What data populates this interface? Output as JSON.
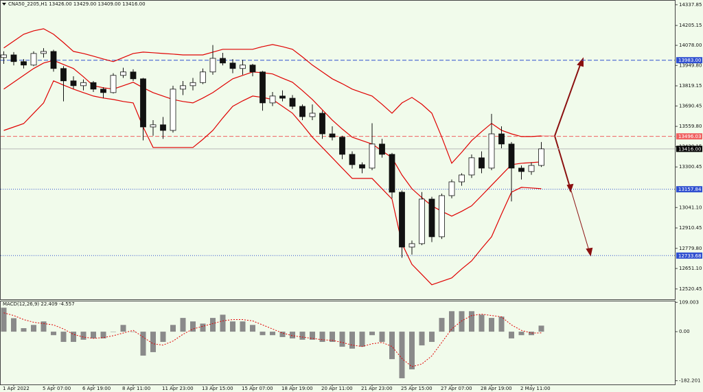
{
  "chart_data": {
    "type": "candlestick",
    "title": "CNA50_2205,H1 13426.00 13429.00 13409.00 13416.00",
    "categories": [
      null,
      "1 Apr 2022",
      null,
      null,
      null,
      "5 Apr 07:00",
      null,
      null,
      null,
      "6 Apr 19:00",
      null,
      null,
      null,
      "8 Apr 11:00",
      null,
      null,
      null,
      "11 Apr 23:00",
      null,
      null,
      null,
      "13 Apr 15:00",
      null,
      null,
      null,
      "15 Apr 07:00",
      null,
      null,
      null,
      "18 Apr 19:00",
      null,
      null,
      null,
      "20 Apr 11:00",
      null,
      null,
      null,
      "21 Apr 23:00",
      null,
      null,
      null,
      "25 Apr 15:00",
      null,
      null,
      null,
      "27 Apr 07:00",
      null,
      null,
      null,
      "28 Apr 19:00",
      null,
      null,
      null,
      "2 May 11:00",
      null
    ],
    "open": [
      14000,
      14017,
      13974,
      13952,
      14026,
      14039,
      13930,
      13851,
      13820,
      13840,
      13798,
      13776,
      13886,
      13908,
      13864,
      13556,
      13570,
      13534,
      13798,
      13820,
      13840,
      13908,
      13995,
      13965,
      13930,
      13952,
      13908,
      13710,
      13754,
      13740,
      13688,
      13622,
      13644,
      13512,
      13491,
      13381,
      13315,
      13293,
      13447,
      13381,
      13139,
      12788,
      12810,
      13095,
      12854,
      13117,
      13205,
      13249,
      13359,
      13293,
      13512,
      13447,
      13293,
      13271,
      13310
    ],
    "high": [
      14040,
      14035,
      13990,
      14040,
      14060,
      14050,
      13945,
      13880,
      13860,
      13850,
      13810,
      13900,
      13935,
      13925,
      13870,
      13600,
      13620,
      13820,
      13850,
      13870,
      13930,
      14080,
      14030,
      13990,
      13985,
      13960,
      13915,
      13780,
      13790,
      13760,
      13700,
      13700,
      13660,
      13560,
      13500,
      13400,
      13330,
      13580,
      13480,
      13390,
      13150,
      12830,
      13140,
      13110,
      13130,
      13220,
      13260,
      13380,
      13400,
      13640,
      13560,
      13460,
      13310,
      13330,
      13460
    ],
    "low": [
      13960,
      13950,
      13930,
      13945,
      14000,
      13910,
      13720,
      13800,
      13790,
      13780,
      13740,
      13770,
      13870,
      13850,
      13470,
      13500,
      13480,
      13520,
      13760,
      13790,
      13830,
      13890,
      13950,
      13900,
      13890,
      13880,
      13660,
      13690,
      13720,
      13670,
      13600,
      13600,
      13480,
      13470,
      13350,
      13290,
      13260,
      13280,
      13360,
      13100,
      12720,
      12740,
      12800,
      12820,
      12840,
      13100,
      13180,
      13230,
      13260,
      13280,
      13420,
      13080,
      13220,
      13250,
      13300
    ],
    "close": [
      14017,
      13974,
      13952,
      14026,
      14039,
      13930,
      13851,
      13820,
      13840,
      13798,
      13776,
      13886,
      13908,
      13864,
      13556,
      13570,
      13534,
      13798,
      13820,
      13840,
      13908,
      13995,
      13965,
      13930,
      13952,
      13908,
      13710,
      13754,
      13740,
      13688,
      13622,
      13644,
      13512,
      13491,
      13381,
      13315,
      13293,
      13447,
      13381,
      13139,
      12788,
      12810,
      13095,
      12854,
      13117,
      13205,
      13249,
      13359,
      13293,
      13512,
      13447,
      13293,
      13271,
      13310,
      13416
    ],
    "candle_color": "#111111",
    "bollinger": {
      "color": "#e00000",
      "upper": [
        14061,
        14105,
        14149,
        14171,
        14184,
        14149,
        14096,
        14039,
        14026,
        14009,
        13991,
        13974,
        14000,
        14026,
        14035,
        14031,
        14026,
        14022,
        14017,
        14017,
        14017,
        14035,
        14053,
        14053,
        14053,
        14053,
        14070,
        14083,
        14070,
        14053,
        14004,
        13952,
        13908,
        13864,
        13833,
        13798,
        13776,
        13754,
        13701,
        13644,
        13710,
        13745,
        13701,
        13644,
        13491,
        13324,
        13394,
        13469,
        13526,
        13579,
        13535,
        13512,
        13495,
        13495,
        13499
      ],
      "middle": [
        13798,
        13842,
        13886,
        13930,
        13965,
        13982,
        13956,
        13930,
        13877,
        13820,
        13807,
        13798,
        13820,
        13842,
        13807,
        13776,
        13754,
        13732,
        13719,
        13710,
        13741,
        13776,
        13820,
        13864,
        13886,
        13908,
        13903,
        13895,
        13868,
        13842,
        13789,
        13732,
        13666,
        13600,
        13543,
        13491,
        13469,
        13447,
        13403,
        13359,
        13249,
        13161,
        13104,
        13052,
        13017,
        12986,
        13017,
        13052,
        13117,
        13183,
        13249,
        13315,
        13324,
        13328,
        13333
      ],
      "lower": [
        13534,
        13556,
        13578,
        13644,
        13710,
        13851,
        13824,
        13798,
        13776,
        13754,
        13741,
        13732,
        13719,
        13710,
        13556,
        13425,
        13425,
        13425,
        13425,
        13425,
        13477,
        13534,
        13614,
        13688,
        13723,
        13754,
        13745,
        13732,
        13688,
        13644,
        13570,
        13491,
        13425,
        13359,
        13293,
        13227,
        13227,
        13227,
        13161,
        13095,
        12810,
        12678,
        12613,
        12547,
        12569,
        12591,
        12648,
        12700,
        12779,
        12854,
        12999,
        13139,
        13170,
        13166,
        13161
      ]
    },
    "ylim": [
      12454,
      14368
    ],
    "yticks": [
      14337.85,
      14205.15,
      {
        "value": 14078,
        "label": "14078.00"
      },
      {
        "value": 13949.8,
        "label": "13949.80"
      },
      13819.15,
      13690.45,
      {
        "value": 13559.8,
        "label": "13559.80"
      },
      13430.15,
      13300.45,
      {
        "value": 13041.1,
        "label": "13041.10"
      },
      12910.45,
      {
        "value": 12779.8,
        "label": "12779.80"
      },
      {
        "value": 12651.1,
        "label": "12651.10"
      },
      12520.45
    ],
    "levels": [
      {
        "value": 13983,
        "label": "13983.00",
        "color": "#2f4fd0",
        "style": "dashed"
      },
      {
        "value": 13496.03,
        "label": "13496.03",
        "color": "#f06060",
        "style": "dashed"
      },
      {
        "value": 13416,
        "label": "13416.00",
        "color": "#000000",
        "style": "solid"
      },
      {
        "value": 13157.84,
        "label": "13157.84",
        "color": "#2f4fd0",
        "style": "dotted"
      },
      {
        "value": 12733.68,
        "label": "12733.68",
        "color": "#2f4fd0",
        "style": "dotted"
      }
    ],
    "macd": {
      "title": "MACD(12,26,9) 22.409 -4.557",
      "histogram": [
        89,
        50,
        13,
        25,
        38,
        -13,
        -38,
        -38,
        -30,
        -25,
        -25,
        0,
        25,
        0,
        -89,
        -76,
        -38,
        25,
        51,
        38,
        30,
        51,
        63,
        38,
        38,
        25,
        -13,
        -13,
        -20,
        -25,
        -30,
        -30,
        -38,
        -38,
        -56,
        -63,
        -56,
        -13,
        -38,
        -102,
        -173,
        -140,
        -51,
        -38,
        51,
        76,
        76,
        76,
        63,
        51,
        56,
        -25,
        -13,
        -13,
        22.409
      ],
      "signal": [
        70,
        60,
        45,
        35,
        30,
        25,
        10,
        -10,
        -20,
        -25,
        -22,
        -15,
        -5,
        5,
        -20,
        -45,
        -50,
        -35,
        -10,
        10,
        20,
        30,
        40,
        45,
        45,
        40,
        25,
        10,
        -5,
        -15,
        -20,
        -25,
        -30,
        -32,
        -40,
        -50,
        -55,
        -45,
        -40,
        -55,
        -100,
        -130,
        -120,
        -90,
        -40,
        10,
        40,
        60,
        65,
        60,
        55,
        25,
        5,
        -5,
        -4.557
      ],
      "histogram_color": "#8a8a8a",
      "signal_color": "#e00000",
      "ylim": [
        -196,
        115
      ],
      "yticks": [
        109.003,
        {
          "value": 0,
          "label": "0.00"
        },
        -182.201
      ]
    }
  }
}
